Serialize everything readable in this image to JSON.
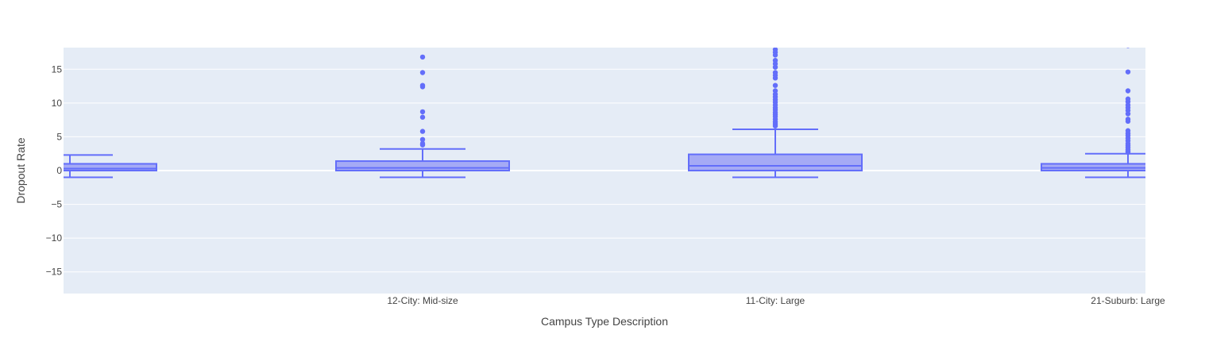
{
  "chart_data": {
    "type": "box",
    "title": "",
    "xlabel": "Campus Type Description",
    "ylabel": "Dropout Rate",
    "ylim": [
      -18.2,
      18.2
    ],
    "yticks": [
      -15,
      -10,
      -5,
      0,
      5,
      10,
      15
    ],
    "grid": true,
    "categories": [
      "",
      "12-City: Mid-size",
      "11-City: Large",
      "21-Suburb: Large"
    ],
    "boxes": [
      {
        "category": "",
        "min": -1.0,
        "q1": 0.0,
        "median": 0.3,
        "q3": 1.0,
        "max": 2.3,
        "outliers": []
      },
      {
        "category": "12-City: Mid-size",
        "min": -1.0,
        "q1": 0.0,
        "median": 0.4,
        "q3": 1.4,
        "max": 3.2,
        "outliers": [
          3.8,
          4.0,
          4.6,
          5.8,
          7.9,
          8.7,
          12.4,
          12.6,
          14.5,
          16.8
        ]
      },
      {
        "category": "11-City: Large",
        "min": -1.0,
        "q1": 0.0,
        "median": 0.7,
        "q3": 2.4,
        "max": 6.1,
        "outliers": [
          6.6,
          6.9,
          7.2,
          7.6,
          8.0,
          8.3,
          8.6,
          9.0,
          9.3,
          9.7,
          10.1,
          10.5,
          10.9,
          11.3,
          11.8,
          12.6,
          13.7,
          14.1,
          14.5,
          15.3,
          15.8,
          16.3,
          17.1,
          17.5,
          17.9
        ]
      },
      {
        "category": "21-Suburb: Large",
        "min": -1.0,
        "q1": 0.0,
        "median": 0.4,
        "q3": 1.0,
        "max": 2.5,
        "outliers": [
          2.7,
          2.9,
          3.1,
          3.4,
          3.7,
          4.0,
          4.4,
          4.8,
          5.2,
          5.5,
          5.9,
          7.3,
          7.6,
          8.4,
          8.9,
          9.3,
          9.7,
          10.2,
          10.6,
          11.8,
          14.6,
          18.5
        ]
      }
    ],
    "colors": {
      "box_line": "#636efa",
      "box_fill": "#a5aaf5",
      "plot_bg": "#e5ecf6",
      "grid": "#ffffff",
      "text": "#444444"
    }
  }
}
